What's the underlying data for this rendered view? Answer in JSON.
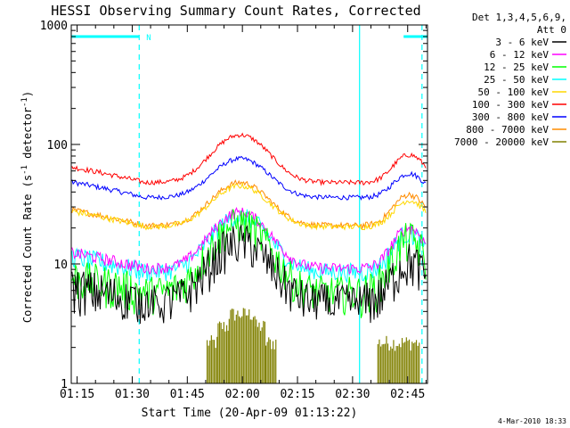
{
  "chart_data": {
    "type": "line",
    "title": "HESSI Observing Summary Count Rates, Corrected",
    "xlabel": "Start Time (20-Apr-09 01:13:22)",
    "ylabel": "Corrected Count Rate (s⁻¹ detector⁻¹)",
    "ylabel_parts": {
      "main": "Corrected Count Rate (s",
      "sup1": "-1",
      "mid": " detector",
      "sup2": "-1",
      "end": ")"
    },
    "x_units": "minutes after 01:13:22",
    "xlim": [
      0,
      97
    ],
    "ylim": [
      1,
      1000
    ],
    "yscale": "log",
    "x_ticks": [
      {
        "t": 1.6,
        "label": "01:15"
      },
      {
        "t": 16.6,
        "label": "01:30"
      },
      {
        "t": 31.6,
        "label": "01:45"
      },
      {
        "t": 46.6,
        "label": "02:00"
      },
      {
        "t": 61.6,
        "label": "02:15"
      },
      {
        "t": 76.6,
        "label": "02:30"
      },
      {
        "t": 91.6,
        "label": "02:45"
      }
    ],
    "y_ticks": [
      {
        "v": 1,
        "label": "1"
      },
      {
        "v": 10,
        "label": "10"
      },
      {
        "v": 100,
        "label": "100"
      },
      {
        "v": 1000,
        "label": "1000"
      }
    ],
    "legend_header": [
      "Det 1,3,4,5,6,9,",
      "Att 0"
    ],
    "legend_position": "right",
    "series": [
      {
        "name": "3 - 6 keV",
        "color": "#000000",
        "base": 4.8,
        "amp": 15.5,
        "spread": 0.45,
        "floor": 3.5,
        "right_amp": 10.5
      },
      {
        "name": "6 - 12 keV",
        "color": "#ff00ff",
        "base": 9.2,
        "amp": 27,
        "spread": 0.12,
        "floor": 0,
        "right_amp": 20
      },
      {
        "name": "12 - 25 keV",
        "color": "#00ff00",
        "base": 5.8,
        "amp": 22,
        "spread": 0.4,
        "floor": 0,
        "right_amp": 16
      },
      {
        "name": "25 - 50 keV",
        "color": "#00ffff",
        "base": 8.6,
        "amp": 25,
        "spread": 0.2,
        "floor": 0,
        "right_amp": 18
      },
      {
        "name": "50 - 100 keV",
        "color": "#ffd700",
        "base": 20.5,
        "amp": 45,
        "spread": 0.06,
        "floor": 0,
        "right_amp": 34
      },
      {
        "name": "100 - 300 keV",
        "color": "#ff0000",
        "base": 48,
        "amp": 120,
        "spread": 0.05,
        "floor": 0,
        "right_amp": 82
      },
      {
        "name": "300 - 800 keV",
        "color": "#0000ff",
        "base": 36,
        "amp": 76,
        "spread": 0.05,
        "floor": 0,
        "right_amp": 57
      },
      {
        "name": "800 - 7000 keV",
        "color": "#ff8c00",
        "base": 21,
        "amp": 48,
        "spread": 0.06,
        "floor": 0,
        "right_amp": 38
      },
      {
        "name": "7000 - 20000 keV",
        "color": "#808000",
        "base": 0,
        "amp": 0,
        "spread": 0,
        "floor": 0,
        "right_amp": 0
      }
    ],
    "attenuator_segments": [
      {
        "t0": 0,
        "t1": 18.5,
        "level": 800
      },
      {
        "t0": 90.5,
        "t1": 97,
        "level": 800
      }
    ],
    "attenuator_label": "N",
    "night_markers": [
      {
        "t": 18.5,
        "style": "dashed"
      },
      {
        "t": 78.5,
        "style": "solid"
      },
      {
        "t": 95.5,
        "style": "dashed"
      }
    ],
    "high_energy_blocks": [
      {
        "t0": 37,
        "t1": 40,
        "low": 1,
        "high": 2.2
      },
      {
        "t0": 40,
        "t1": 43,
        "low": 1,
        "high": 3
      },
      {
        "t0": 43,
        "t1": 50,
        "low": 1,
        "high": 3.8
      },
      {
        "t0": 50,
        "t1": 53,
        "low": 1,
        "high": 3
      },
      {
        "t0": 53,
        "t1": 56,
        "low": 1,
        "high": 2.2
      },
      {
        "t0": 83.5,
        "t1": 95,
        "low": 1,
        "high": 2.2
      }
    ],
    "timestamp": "4-Mar-2010 18:33"
  }
}
